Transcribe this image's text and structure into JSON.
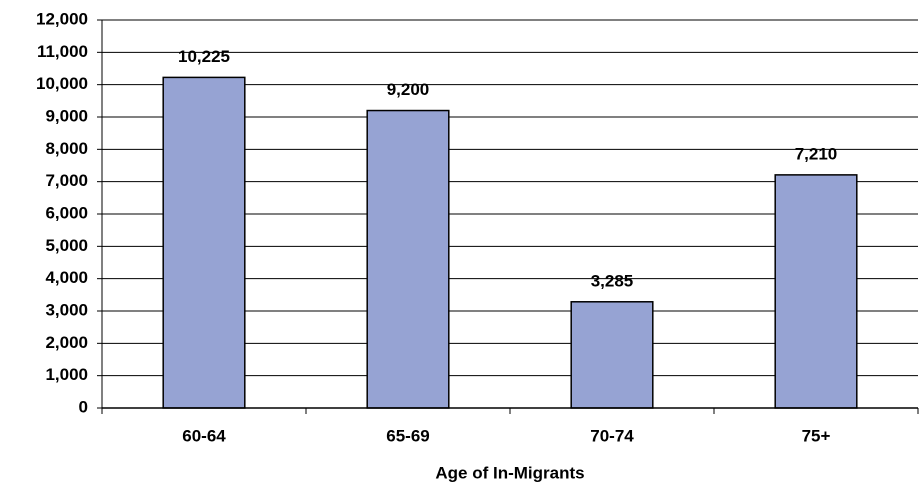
{
  "chart_data": {
    "type": "bar",
    "x_label": "Age of In-Migrants",
    "categories": [
      "60-64",
      "65-69",
      "70-74",
      "75+"
    ],
    "values": [
      10225,
      9200,
      3285,
      7210
    ],
    "value_labels": [
      "10,225",
      "9,200",
      "3,285",
      "7,210"
    ],
    "color": "#96a3d3",
    "ylim": [
      0,
      12000
    ],
    "yticks": [
      0,
      {
        "value": 1000,
        "label": "1,000"
      },
      {
        "value": 2000,
        "label": "2,000"
      },
      {
        "value": 3000,
        "label": "3,000"
      },
      {
        "value": 4000,
        "label": "4,000"
      },
      {
        "value": 5000,
        "label": "5,000"
      },
      {
        "value": 6000,
        "label": "6,000"
      },
      {
        "value": 7000,
        "label": "7,000"
      },
      {
        "value": 8000,
        "label": "8,000"
      },
      {
        "value": 9000,
        "label": "9,000"
      },
      {
        "value": 10000,
        "label": "10,000"
      },
      {
        "value": 11000,
        "label": "11,000"
      },
      {
        "value": 12000,
        "label": "12,000"
      }
    ],
    "grid": true
  }
}
